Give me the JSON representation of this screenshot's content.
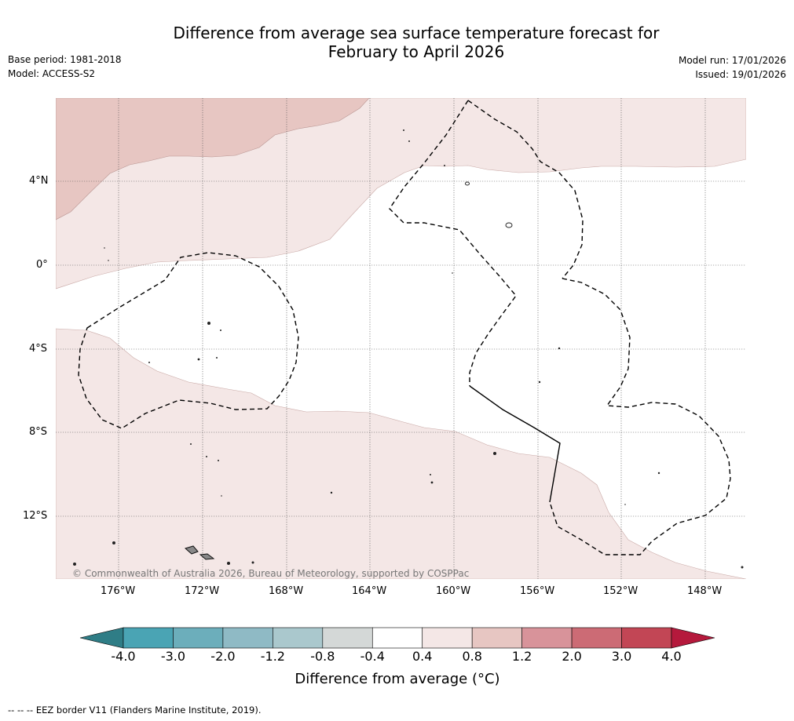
{
  "header": {
    "title_line1": "Difference from average sea surface temperature forecast for",
    "title_line2": "February to April 2026",
    "base_period": "Base period: 1981-2018",
    "model": "Model: ACCESS-S2",
    "model_run": "Model run: 17/01/2026",
    "issued": "Issued: 19/01/2026"
  },
  "map": {
    "copyright": "© Commonwealth of Australia 2026, Bureau of Meteorology, supported by COSPPac",
    "lon_labels": [
      "176°W",
      "172°W",
      "168°W",
      "164°W",
      "160°W",
      "156°W",
      "152°W",
      "148°W"
    ],
    "lat_labels": [
      "4°N",
      "0°",
      "4°S",
      "8°S",
      "12°S"
    ],
    "colors": {
      "anom_0_4_0_8": "#f4e7e6",
      "anom_0_8_1_2": "#e7c6c2",
      "eez_line": "#000000",
      "grid": "#555555"
    }
  },
  "colorbar": {
    "title": "Difference from average (°C)",
    "ticks": [
      "-4.0",
      "-3.0",
      "-2.0",
      "-1.2",
      "-0.8",
      "-0.4",
      "0.4",
      "0.8",
      "1.2",
      "2.0",
      "3.0",
      "4.0"
    ],
    "colors": [
      "#2f7d86",
      "#4aa4b4",
      "#6caebb",
      "#8fbac5",
      "#aac8cd",
      "#d4d8d7",
      "#ffffff",
      "#f4e7e6",
      "#e7c6c2",
      "#d8939a",
      "#cc6b75",
      "#c24655",
      "#b5193c"
    ]
  },
  "footer": {
    "eez_note": "--  --  -- EEZ border V11 (Flanders Marine Institute, 2019)."
  }
}
